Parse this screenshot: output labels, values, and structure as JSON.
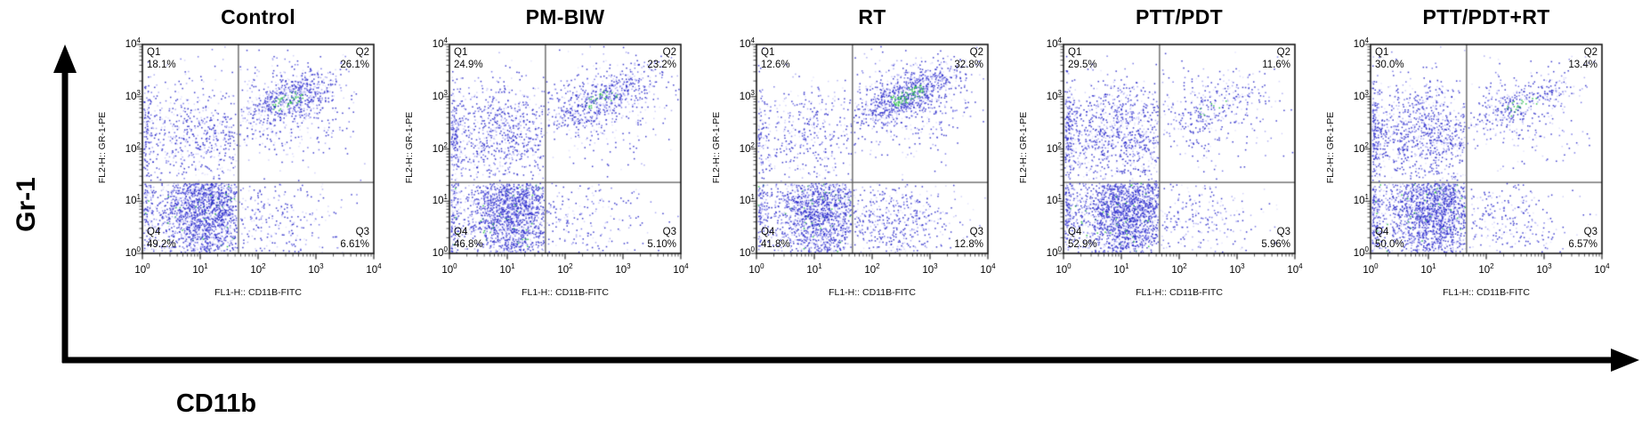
{
  "figure_axes": {
    "y_label": "Gr-1",
    "x_label": "CD11b"
  },
  "chart_data": {
    "type": "scatter",
    "subtype": "flow_cytometry_dot_plot",
    "x_axis": {
      "label": "FL1-H:: CD11B-FITC",
      "scale": "log10",
      "tick_exponents": [
        0,
        1,
        2,
        3,
        4
      ],
      "range_log10": [
        0,
        4
      ]
    },
    "y_axis": {
      "label": "FL2-H:: GR-1-PE",
      "scale": "log10",
      "tick_exponents": [
        0,
        1,
        2,
        3,
        4
      ],
      "range_log10": [
        0,
        4
      ]
    },
    "quadrant_gate": {
      "x_log10": 1.66,
      "y_log10": 1.36
    },
    "panels": [
      {
        "title": "Control",
        "seed": 101,
        "quadrants": [
          {
            "id": "Q1",
            "pct": "18.1%",
            "value": 18.1
          },
          {
            "id": "Q2",
            "pct": "26.1%",
            "value": 26.1
          },
          {
            "id": "Q3",
            "pct": "6.61%",
            "value": 6.61
          },
          {
            "id": "Q4",
            "pct": "49.2%",
            "value": 49.2
          }
        ],
        "q2_center": [
          2.5,
          2.92
        ],
        "q2_tight": 0.6,
        "green_rate": 0.4
      },
      {
        "title": "PM-BIW",
        "seed": 202,
        "quadrants": [
          {
            "id": "Q1",
            "pct": "24.9%",
            "value": 24.9
          },
          {
            "id": "Q2",
            "pct": "23.2%",
            "value": 23.2
          },
          {
            "id": "Q3",
            "pct": "5.10%",
            "value": 5.1
          },
          {
            "id": "Q4",
            "pct": "46.8%",
            "value": 46.8
          }
        ],
        "q2_center": [
          2.62,
          2.95
        ],
        "q2_tight": 0.6,
        "green_rate": 0.35
      },
      {
        "title": "RT",
        "seed": 303,
        "quadrants": [
          {
            "id": "Q1",
            "pct": "12.6%",
            "value": 12.6
          },
          {
            "id": "Q2",
            "pct": "32.8%",
            "value": 32.8
          },
          {
            "id": "Q3",
            "pct": "12.8%",
            "value": 12.8
          },
          {
            "id": "Q4",
            "pct": "41.8%",
            "value": 41.8
          }
        ],
        "q2_center": [
          2.62,
          3.02
        ],
        "q2_tight": 0.68,
        "green_rate": 0.55
      },
      {
        "title": "PTT/PDT",
        "seed": 404,
        "quadrants": [
          {
            "id": "Q1",
            "pct": "29.5%",
            "value": 29.5
          },
          {
            "id": "Q2",
            "pct": "11.6%",
            "value": 11.6
          },
          {
            "id": "Q3",
            "pct": "5.96%",
            "value": 5.96
          },
          {
            "id": "Q4",
            "pct": "52.9%",
            "value": 52.9
          }
        ],
        "q2_center": [
          2.55,
          2.8
        ],
        "q2_tight": 0.45,
        "green_rate": 0.12
      },
      {
        "title": "PTT/PDT+RT",
        "seed": 505,
        "quadrants": [
          {
            "id": "Q1",
            "pct": "30.0%",
            "value": 30.0
          },
          {
            "id": "Q2",
            "pct": "13.4%",
            "value": 13.4
          },
          {
            "id": "Q3",
            "pct": "6.57%",
            "value": 6.57
          },
          {
            "id": "Q4",
            "pct": "50.0%",
            "value": 50.0
          }
        ],
        "q2_center": [
          2.6,
          2.85
        ],
        "q2_tight": 0.55,
        "green_rate": 0.3
      }
    ],
    "points_per_percent": 36,
    "colors": {
      "dot_blue_dark": "rgba(40,40,200,0.9)",
      "dot_blue_mid": "rgba(70,70,220,0.72)",
      "dot_blue_soft": "rgba(110,110,232,0.55)",
      "dot_blue_light": "rgba(150,150,242,0.42)",
      "dot_blue_faint": "rgba(175,175,246,0.32)",
      "dot_green": "rgba(30,190,60,0.9)",
      "gate_line": "#5a5a5a",
      "frame": "#151515",
      "arrow": "#000000"
    }
  }
}
